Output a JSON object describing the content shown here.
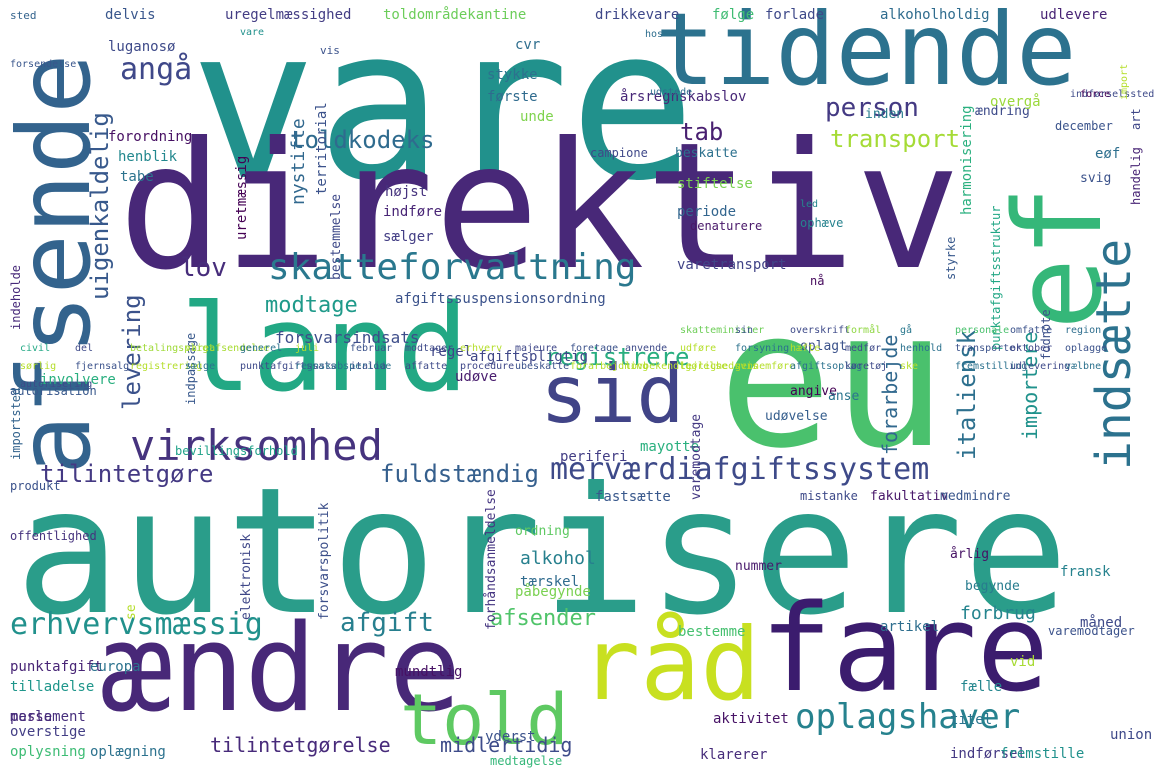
{
  "words": [
    {
      "text": "vare",
      "color": "#21918c"
    },
    {
      "text": "direktiv",
      "color": "#482878"
    },
    {
      "text": "autorisere",
      "color": "#2a9d8a"
    },
    {
      "text": "eu",
      "color": "#4ac16d"
    },
    {
      "text": "ændre",
      "color": "#482878"
    },
    {
      "text": "fare",
      "color": "#3b1c6e"
    },
    {
      "text": "land",
      "color": "#22a884"
    },
    {
      "text": "tidende",
      "color": "#2c728e"
    },
    {
      "text": "afsende",
      "color": "#33638d"
    },
    {
      "text": "ef",
      "color": "#35b779"
    },
    {
      "text": "sid",
      "color": "#414487"
    },
    {
      "text": "råd",
      "color": "#c8e020"
    },
    {
      "text": "told",
      "color": "#5ec962"
    },
    {
      "text": "virksomhed",
      "color": "#46337e"
    },
    {
      "text": "skatteforvaltning",
      "color": "#2a788e"
    },
    {
      "text": "indsætte",
      "color": "#2c728e"
    },
    {
      "text": "oplagshaver",
      "color": "#26828e"
    },
    {
      "text": "erhvervsmæssig",
      "color": "#21918c"
    },
    {
      "text": "merværdiafgiftssystem",
      "color": "#3e4a89"
    },
    {
      "text": "registrere",
      "color": "#28ae80"
    },
    {
      "text": "fuldstændig",
      "color": "#355f8d"
    },
    {
      "text": "tilintetgøre",
      "color": "#443983"
    },
    {
      "text": "modtage",
      "color": "#1f9a8a"
    },
    {
      "text": "toldkodeks",
      "color": "#2f6b8e"
    },
    {
      "text": "person",
      "color": "#443a83"
    },
    {
      "text": "transport",
      "color": "#a5db36"
    },
    {
      "text": "tab",
      "color": "#481f70"
    },
    {
      "text": "lov",
      "color": "#472d7b"
    },
    {
      "text": "angå",
      "color": "#3f4889"
    },
    {
      "text": "uigenkaldelig",
      "color": "#38598c"
    },
    {
      "text": "levering",
      "color": "#3b528b"
    },
    {
      "text": "italiensk",
      "color": "#2d708e"
    },
    {
      "text": "forarbejde",
      "color": "#31688e"
    },
    {
      "text": "importere",
      "color": "#20928c"
    },
    {
      "text": "afgift",
      "color": "#277f8e"
    },
    {
      "text": "afsender",
      "color": "#50c46a"
    },
    {
      "text": "alkohol",
      "color": "#27808e"
    },
    {
      "text": "forbrug",
      "color": "#25848e"
    },
    {
      "text": "tilintetgørelse",
      "color": "#472a7a"
    },
    {
      "text": "midlertidig",
      "color": "#3e4c8a"
    },
    {
      "text": "nystifte",
      "color": "#31688e"
    },
    {
      "text": "territorial",
      "color": "#3b528b"
    },
    {
      "text": "uretmæssig",
      "color": "#440154"
    },
    {
      "text": "bestemmelse",
      "color": "#3e4989"
    },
    {
      "text": "højst",
      "color": "#46337e"
    },
    {
      "text": "indføre",
      "color": "#482576"
    },
    {
      "text": "sælger",
      "color": "#433e85"
    },
    {
      "text": "periode",
      "color": "#32658e"
    },
    {
      "text": "varetransport",
      "color": "#414487"
    },
    {
      "text": "stiftelse",
      "color": "#7ad151"
    },
    {
      "text": "forsvarsindsats",
      "color": "#3d4d8a"
    },
    {
      "text": "regel",
      "color": "#404588"
    },
    {
      "text": "afgiftspligtig",
      "color": "#3f4788"
    },
    {
      "text": "afgiftssuspensionsordning",
      "color": "#3b528b"
    },
    {
      "text": "udøve",
      "color": "#481c6e"
    },
    {
      "text": "involvere",
      "color": "#29af7f"
    },
    {
      "text": "autorisation",
      "color": "#38588c"
    },
    {
      "text": "importsted",
      "color": "#33638d"
    },
    {
      "text": "indpassage",
      "color": "#38588c"
    },
    {
      "text": "forordning",
      "color": "#471063"
    },
    {
      "text": "henblik",
      "color": "#23888e"
    },
    {
      "text": "tabe",
      "color": "#2c738e"
    },
    {
      "text": "luganosø",
      "color": "#3e4a89"
    },
    {
      "text": "delvis",
      "color": "#39568c"
    },
    {
      "text": "uregelmæssighed",
      "color": "#433d84"
    },
    {
      "text": "toldområdekantine",
      "color": "#6ccd5a"
    },
    {
      "text": "drikkevare",
      "color": "#3f4889"
    },
    {
      "text": "følge",
      "color": "#3fbc73"
    },
    {
      "text": "forlade",
      "color": "#3e4989"
    },
    {
      "text": "alkoholholdig",
      "color": "#2f6c8e"
    },
    {
      "text": "udlevere",
      "color": "#482475"
    },
    {
      "text": "cvr",
      "color": "#2e6e8e"
    },
    {
      "text": "stykke",
      "color": "#2d718e"
    },
    {
      "text": "første",
      "color": "#2f6b8e"
    },
    {
      "text": "årsregnskabslov",
      "color": "#482878"
    },
    {
      "text": "unde",
      "color": "#7fd34e"
    },
    {
      "text": "campione",
      "color": "#3f4889"
    },
    {
      "text": "beskatte",
      "color": "#2d718e"
    },
    {
      "text": "inden",
      "color": "#287c8e"
    },
    {
      "text": "december",
      "color": "#3a538b"
    },
    {
      "text": "ændring",
      "color": "#3e4c8a"
    },
    {
      "text": "overgå",
      "color": "#9bd93c"
    },
    {
      "text": "svig",
      "color": "#3b528b"
    },
    {
      "text": "eøf",
      "color": "#2e6f8e"
    },
    {
      "text": "led",
      "color": "#24878e"
    },
    {
      "text": "ophæve",
      "color": "#26828e"
    },
    {
      "text": "denaturere",
      "color": "#481769"
    },
    {
      "text": "nå",
      "color": "#460a5d"
    },
    {
      "text": "styrke",
      "color": "#38598c"
    },
    {
      "text": "harmonisering",
      "color": "#2ab07f"
    },
    {
      "text": "punktafgiftsstruktur",
      "color": "#22a785"
    },
    {
      "text": "fodnote",
      "color": "#3c4f8a"
    },
    {
      "text": "oplagt",
      "color": "#3b528b"
    },
    {
      "text": "angive",
      "color": "#440154"
    },
    {
      "text": "anse",
      "color": "#2b758e"
    },
    {
      "text": "udøvelse",
      "color": "#355e8d"
    },
    {
      "text": "periferi",
      "color": "#433e85"
    },
    {
      "text": "mayotte",
      "color": "#2ab07f"
    },
    {
      "text": "fastsætte",
      "color": "#38588c"
    },
    {
      "text": "mistanke",
      "color": "#3e4a89"
    },
    {
      "text": "fakultativ",
      "color": "#48186a"
    },
    {
      "text": "medmindre",
      "color": "#39568c"
    },
    {
      "text": "varemodtager",
      "color": "#3b528b"
    },
    {
      "text": "nummer",
      "color": "#481a6c"
    },
    {
      "text": "årlig",
      "color": "#471365"
    },
    {
      "text": "tærskel",
      "color": "#2f6b8e"
    },
    {
      "text": "påbegynde",
      "color": "#7ad151"
    },
    {
      "text": "begynde",
      "color": "#287c8e"
    },
    {
      "text": "fransk",
      "color": "#26828e"
    },
    {
      "text": "måned",
      "color": "#3e4a89"
    },
    {
      "text": "artikel",
      "color": "#2e6e8e"
    },
    {
      "text": "bestemme",
      "color": "#46c06f"
    },
    {
      "text": "fælle",
      "color": "#24868e"
    },
    {
      "text": "titel",
      "color": "#2b748e"
    },
    {
      "text": "aktivitet",
      "color": "#481467"
    },
    {
      "text": "klarerer",
      "color": "#472d7b"
    },
    {
      "text": "indførsel",
      "color": "#443983"
    },
    {
      "text": "fremstille",
      "color": "#21918c"
    },
    {
      "text": "union",
      "color": "#3e4989"
    },
    {
      "text": "vid",
      "color": "#a8db34"
    },
    {
      "text": "yderst",
      "color": "#3b528b"
    },
    {
      "text": "mundtlig",
      "color": "#471164"
    },
    {
      "text": "punktafgift",
      "color": "#482576"
    },
    {
      "text": "europa",
      "color": "#2c738e"
    },
    {
      "text": "tilladelse",
      "color": "#1f968b"
    },
    {
      "text": "messe",
      "color": "#482475"
    },
    {
      "text": "parlament",
      "color": "#472f7d"
    },
    {
      "text": "overstige",
      "color": "#433e85"
    },
    {
      "text": "oplysning",
      "color": "#3dbc74"
    },
    {
      "text": "oplægning",
      "color": "#2c728e"
    },
    {
      "text": "medtagelse",
      "color": "#35b779"
    },
    {
      "text": "forhåndsanmeldelse",
      "color": "#453581"
    },
    {
      "text": "forsvarspolitik",
      "color": "#3c4f8a"
    },
    {
      "text": "ordning",
      "color": "#5ec962"
    },
    {
      "text": "varemodtage",
      "color": "#443983"
    },
    {
      "text": "se",
      "color": "#b5de2b"
    },
    {
      "text": "elektronisk",
      "color": "#3f4889"
    },
    {
      "text": "offentlighed",
      "color": "#46337e"
    },
    {
      "text": "produkt",
      "color": "#3b528b"
    },
    {
      "text": "indeholde",
      "color": "#472a7a"
    },
    {
      "text": "bevillingsforhold",
      "color": "#1fa188"
    },
    {
      "text": "sted",
      "color": "#33638d"
    },
    {
      "text": "vare",
      "color": "#21918c"
    },
    {
      "text": "forsendelse",
      "color": "#39568c"
    },
    {
      "text": "vis",
      "color": "#3b528b"
    },
    {
      "text": "hos",
      "color": "#2e6e8e"
    },
    {
      "text": "handelig",
      "color": "#482475"
    },
    {
      "text": "art",
      "color": "#3f4788"
    },
    {
      "text": "udstede",
      "color": "#2e6e8e"
    },
    {
      "text": "indførselssted",
      "color": "#3e4a89"
    },
    {
      "text": "force",
      "color": "#440154"
    },
    {
      "text": "import",
      "color": "#b5de2b"
    },
    {
      "text": "skatteminister",
      "color": "#6ece58"
    },
    {
      "text": "sin",
      "color": "#3b528b"
    },
    {
      "text": "overskrift",
      "color": "#3e4a89"
    },
    {
      "text": "formål",
      "color": "#90d743"
    },
    {
      "text": "gå",
      "color": "#2a788e"
    },
    {
      "text": "personale",
      "color": "#4ac16d"
    },
    {
      "text": "omfatte",
      "color": "#3b528b"
    },
    {
      "text": "region",
      "color": "#2e6e8e"
    },
    {
      "text": "civil",
      "color": "#22a884"
    },
    {
      "text": "del",
      "color": "#3e4a89"
    },
    {
      "text": "betalingspligt",
      "color": "#a0da39"
    },
    {
      "text": "vareafsendelse",
      "color": "#a8db34"
    },
    {
      "text": "generel",
      "color": "#2c728e"
    },
    {
      "text": "juli",
      "color": "#b5de2b"
    },
    {
      "text": "februar",
      "color": "#3b528b"
    },
    {
      "text": "modtager",
      "color": "#3e4a89"
    },
    {
      "text": "erhverv",
      "color": "#b5de2b"
    },
    {
      "text": "majeure",
      "color": "#3f4788"
    },
    {
      "text": "foretage",
      "color": "#3b528b"
    },
    {
      "text": "anvende",
      "color": "#3e4a89"
    },
    {
      "text": "udføre",
      "color": "#b5de2b"
    },
    {
      "text": "forsyning",
      "color": "#2c728e"
    },
    {
      "text": "hæfte",
      "color": "#b5de2b"
    },
    {
      "text": "medfør",
      "color": "#3e4a89"
    },
    {
      "text": "henhold",
      "color": "#2c728e"
    },
    {
      "text": "transporter",
      "color": "#3b528b"
    },
    {
      "text": "oktober",
      "color": "#3f4788"
    },
    {
      "text": "oplagge",
      "color": "#3b528b"
    },
    {
      "text": "sørlig",
      "color": "#b5de2b"
    },
    {
      "text": "fjernsalg",
      "color": "#3b528b"
    },
    {
      "text": "registrering",
      "color": "#b5de2b"
    },
    {
      "text": "sælge",
      "color": "#2c728e"
    },
    {
      "text": "punktafgiftssats",
      "color": "#3e4a89"
    },
    {
      "text": "regnskabsperiode",
      "color": "#2c728e"
    },
    {
      "text": "italia",
      "color": "#3b528b"
    },
    {
      "text": "affatte",
      "color": "#3e4a89"
    },
    {
      "text": "procedure",
      "color": "#3f4788"
    },
    {
      "text": "ubeskatte",
      "color": "#3b528b"
    },
    {
      "text": "forarbejdning",
      "color": "#b5de2b"
    },
    {
      "text": "lovbekendtgørelse",
      "color": "#b5de2b"
    },
    {
      "text": "lejlighedsvis",
      "color": "#b5de2b"
    },
    {
      "text": "gennemføre",
      "color": "#b5de2b"
    },
    {
      "text": "afgiftsoplag",
      "color": "#2c728e"
    },
    {
      "text": "køretøj",
      "color": "#3e4a89"
    },
    {
      "text": "ske",
      "color": "#b5de2b"
    },
    {
      "text": "fremstilling",
      "color": "#2c728e"
    },
    {
      "text": "udlevering",
      "color": "#3e4989"
    },
    {
      "text": "vælbne",
      "color": "#2c728e"
    },
    {
      "text": "autorisering",
      "color": "#3e4a89"
    }
  ]
}
